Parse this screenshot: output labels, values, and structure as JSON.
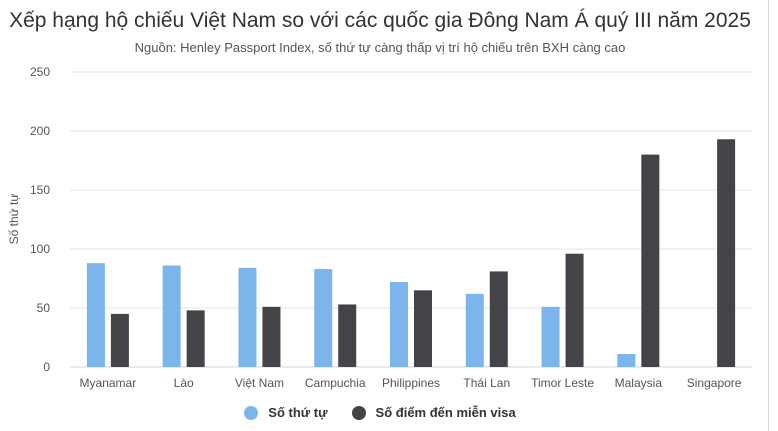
{
  "chart_data": {
    "type": "bar",
    "title": "Xếp hạng hộ chiếu Việt Nam so với các quốc gia Đông Nam Á quý III năm 2025",
    "subtitle": "Nguồn: Henley Passport Index, số thứ tự càng thấp vị trí hộ chiếu trên BXH càng cao",
    "xlabel": "",
    "ylabel": "Số thứ tự",
    "ylim": [
      0,
      250
    ],
    "yticks": [
      0,
      50,
      100,
      150,
      200,
      250
    ],
    "grid": true,
    "legend_position": "bottom",
    "categories": [
      "Myanamar",
      "Lào",
      "Việt Nam",
      "Campuchia",
      "Philippines",
      "Thái Lan",
      "Timor Leste",
      "Malaysia",
      "Singapore"
    ],
    "series": [
      {
        "name": "Số thứ tự",
        "color": "#7cb5ec",
        "values": [
          88,
          86,
          84,
          83,
          72,
          62,
          51,
          11,
          0
        ]
      },
      {
        "name": "Số điểm đến miễn visa",
        "color": "#434348",
        "values": [
          45,
          48,
          51,
          53,
          65,
          81,
          96,
          180,
          193
        ]
      }
    ]
  }
}
